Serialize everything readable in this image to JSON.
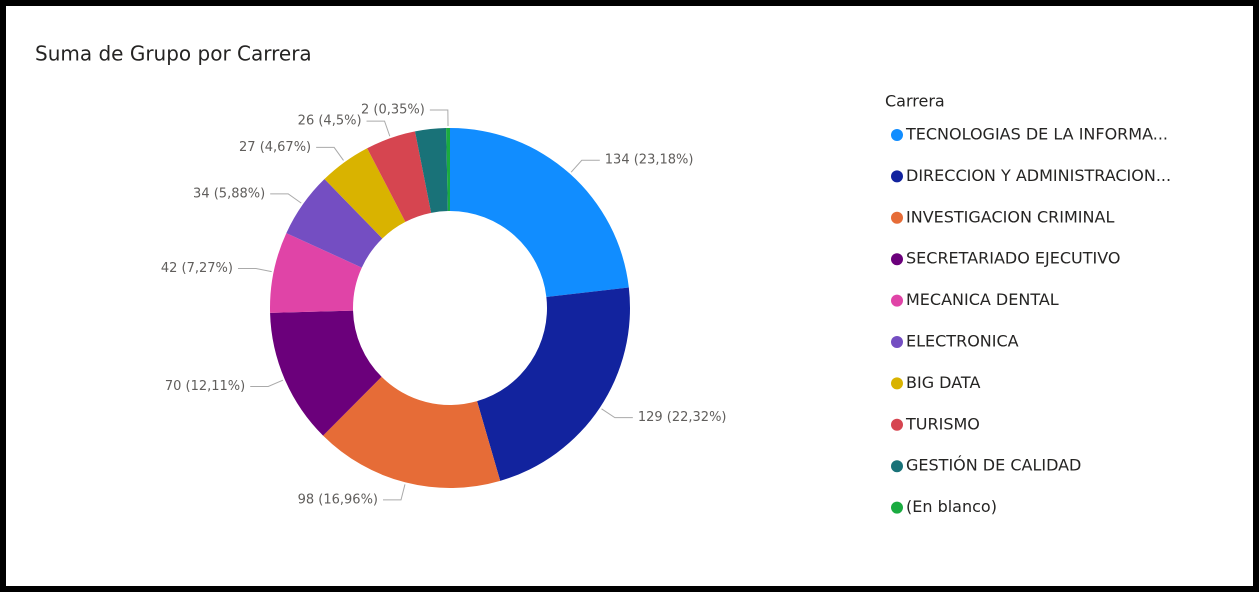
{
  "chart_data": {
    "type": "donut",
    "title": "Suma de Grupo por Carrera",
    "legend_title": "Carrera",
    "legend_position": "right",
    "categories": [
      "TECNOLOGIAS DE LA INFORMA...",
      "DIRECCION Y ADMINISTRACION...",
      "INVESTIGACION CRIMINAL",
      "SECRETARIADO EJECUTIVO",
      "MECANICA DENTAL",
      "ELECTRONICA",
      "BIG DATA",
      "TURISMO",
      "GESTIÓN DE CALIDAD",
      "(En blanco)"
    ],
    "values": [
      134,
      129,
      98,
      70,
      42,
      34,
      27,
      26,
      16,
      2
    ],
    "value_labels": [
      "134 (23,18%)",
      "129 (22,32%)",
      "98 (16,96%)",
      "70 (12,11%)",
      "42 (7,27%)",
      "34 (5,88%)",
      "27 (4,67%)",
      "26 (4,5%)",
      null,
      "2 (0,35%)"
    ],
    "colors": [
      "#118DFF",
      "#12239E",
      "#E66C37",
      "#6B007B",
      "#E044A7",
      "#744EC2",
      "#D9B300",
      "#D64550",
      "#197278",
      "#1AAB40"
    ]
  }
}
